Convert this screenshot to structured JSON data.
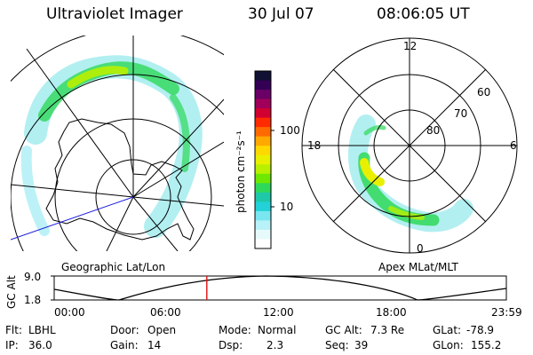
{
  "header": {
    "title": "Ultraviolet Imager",
    "date": "30 Jul 07",
    "time": "08:06:05 UT"
  },
  "colorbar": {
    "unit_label": "photon cm⁻²s⁻¹",
    "ticks": [
      "100",
      "10"
    ],
    "colors": [
      "#111133",
      "#330055",
      "#6a0066",
      "#a0005a",
      "#d20030",
      "#ff2a00",
      "#ff6a00",
      "#ffa800",
      "#ffd800",
      "#e8f000",
      "#b8f000",
      "#6ee800",
      "#2ed85a",
      "#1ec8a8",
      "#22d2d8",
      "#7ae6f0",
      "#b8f2f8",
      "#e6fafc",
      "#ffffff"
    ]
  },
  "left_panel": {
    "caption": "Geographic Lat/Lon"
  },
  "right_panel": {
    "caption": "Apex MLat/MLT",
    "mlt_labels": [
      "12",
      "18",
      "6",
      "0"
    ],
    "lat_labels": [
      "60",
      "70",
      "80"
    ]
  },
  "timeline": {
    "axis_label": "GC Alt",
    "y_ticks": [
      "9.0",
      "1.8"
    ],
    "x_ticks": [
      "00:00",
      "06:00",
      "12:00",
      "18:00",
      "23:59"
    ],
    "current_time_fraction": 0.3376
  },
  "footer": {
    "row1": [
      {
        "key": "Flt:",
        "value": "LBHL"
      },
      {
        "key": "Door:",
        "value": "Open"
      },
      {
        "key": "Mode:",
        "value": "Normal"
      },
      {
        "key": "GC Alt:",
        "value": "7.3 Re"
      },
      {
        "key": "GLat:",
        "value": "-78.9"
      }
    ],
    "row2": [
      {
        "key": "IP:",
        "value": "36.0"
      },
      {
        "key": "Gain:",
        "value": "14"
      },
      {
        "key": "Dsp:",
        "value": "2.3"
      },
      {
        "key": "Seq:",
        "value": "39"
      },
      {
        "key": "GLon:",
        "value": "155.2"
      }
    ]
  }
}
